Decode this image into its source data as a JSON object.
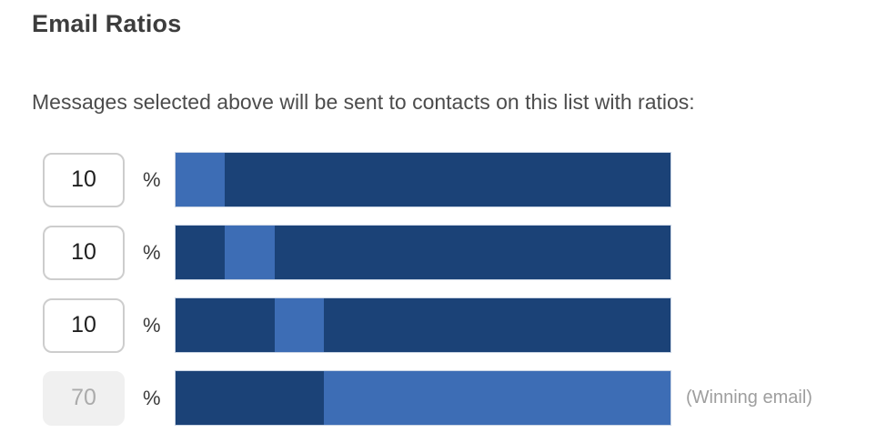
{
  "section": {
    "title": "Email Ratios",
    "description": "Messages selected above will be sent to contacts on this list with ratios:"
  },
  "colors": {
    "bar_dark": "#1b4277",
    "bar_light": "#3d6db5",
    "disabled_bg": "#f0f0f0",
    "disabled_text": "#ababab",
    "note_text": "#9e9e9e"
  },
  "rows": [
    {
      "value": "10",
      "unit": "%",
      "disabled": false,
      "segment_start_pct": 0,
      "segment_width_pct": 10,
      "note": ""
    },
    {
      "value": "10",
      "unit": "%",
      "disabled": false,
      "segment_start_pct": 10,
      "segment_width_pct": 10,
      "note": ""
    },
    {
      "value": "10",
      "unit": "%",
      "disabled": false,
      "segment_start_pct": 20,
      "segment_width_pct": 10,
      "note": ""
    },
    {
      "value": "70",
      "unit": "%",
      "disabled": true,
      "segment_start_pct": 30,
      "segment_width_pct": 70,
      "note": "(Winning email)"
    }
  ],
  "chart_data": {
    "type": "bar",
    "title": "Email Ratios",
    "values": [
      10,
      10,
      10,
      70
    ],
    "unit": "%",
    "annotations": [
      "",
      "",
      "",
      "(Winning email)"
    ],
    "segment_offsets_pct": [
      0,
      10,
      20,
      30
    ],
    "xlim": [
      0,
      100
    ],
    "note_layout": "each full-width bar spans 0-100%; the highlighted light segment starts at the cumulative offset and spans that row's ratio"
  }
}
